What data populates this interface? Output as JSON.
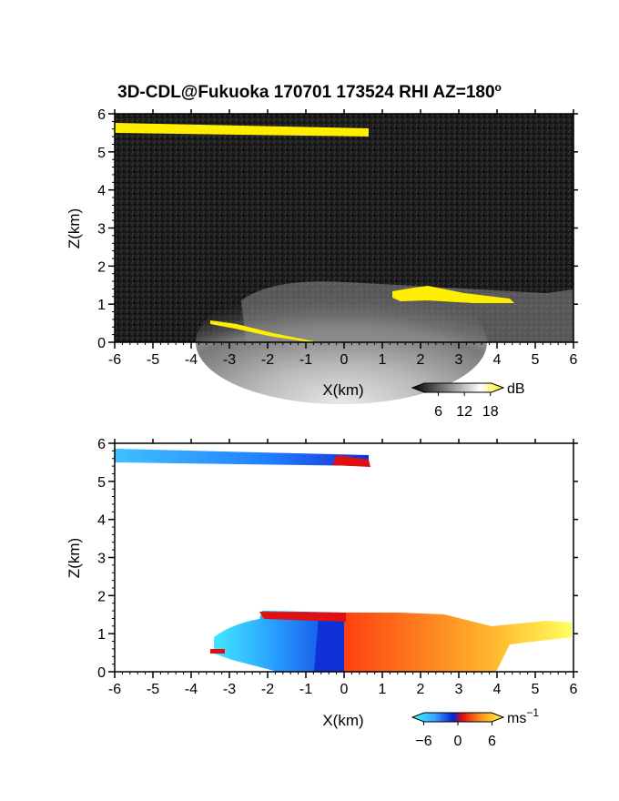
{
  "title": "3D-CDL@Fukuoka 170701 173524 RHI AZ=180",
  "title_sup": "o",
  "colors": {
    "background": "#ffffff",
    "echo_bg": "#1c1c1c",
    "cloud_yellow": "#ffee00",
    "frame": "#000000"
  },
  "chart_data": [
    {
      "type": "heatmap",
      "name": "reflectivity",
      "xlabel": "X(km)",
      "ylabel": "Z(km)",
      "xlim": [
        -6,
        6
      ],
      "ylim": [
        0,
        6
      ],
      "xticks": [
        "-6",
        "-5",
        "-4",
        "-3",
        "-2",
        "-1",
        "0",
        "1",
        "2",
        "3",
        "4",
        "5",
        "6"
      ],
      "yticks": [
        "0",
        "1",
        "2",
        "3",
        "4",
        "5",
        "6"
      ],
      "colorbar": {
        "unit": "dB",
        "ticks": [
          "6",
          "12",
          "18"
        ],
        "range": [
          0,
          21
        ]
      },
      "features": [
        {
          "label": "upper cloud layer",
          "x_range": [
            -6,
            0.6
          ],
          "z_range": [
            5.35,
            5.75
          ],
          "value_dB": 20
        },
        {
          "label": "boundary-layer echo",
          "x_range": [
            -3,
            6
          ],
          "z_range": [
            0,
            1.5
          ],
          "value_dB": 10
        },
        {
          "label": "cloud-base band",
          "x_range": [
            1.3,
            4.5
          ],
          "z_range": [
            1.0,
            1.35
          ],
          "value_dB": 20
        }
      ]
    },
    {
      "type": "heatmap",
      "name": "doppler_velocity",
      "xlabel": "X(km)",
      "ylabel": "Z(km)",
      "xlim": [
        -6,
        6
      ],
      "ylim": [
        0,
        6
      ],
      "xticks": [
        "-6",
        "-5",
        "-4",
        "-3",
        "-2",
        "-1",
        "0",
        "1",
        "2",
        "3",
        "4",
        "5",
        "6"
      ],
      "yticks": [
        "0",
        "1",
        "2",
        "3",
        "4",
        "5",
        "6"
      ],
      "colorbar": {
        "unit": "ms",
        "unit_sup": "−1",
        "ticks": [
          "−6",
          "0",
          "6"
        ],
        "range": [
          -8,
          8
        ]
      },
      "features": [
        {
          "label": "upper layer (toward radar)",
          "x_range": [
            -6,
            0.7
          ],
          "z_range": [
            5.35,
            5.8
          ],
          "velocity_ms": -5
        },
        {
          "label": "negative velocity region",
          "x_range": [
            -3.2,
            0
          ],
          "z_range": [
            0,
            1.5
          ],
          "velocity_ms": -4
        },
        {
          "label": "positive velocity region",
          "x_range": [
            0,
            6
          ],
          "z_range": [
            0,
            1.5
          ],
          "velocity_ms": 4
        }
      ]
    }
  ]
}
